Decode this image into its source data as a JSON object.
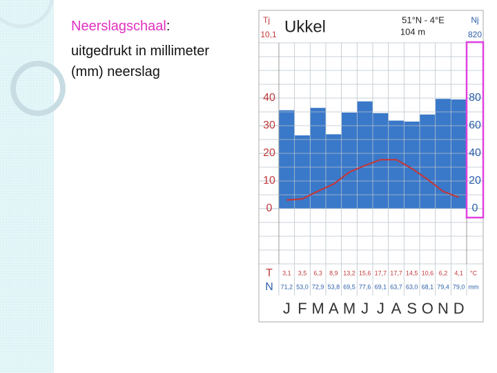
{
  "slide": {
    "term": "Neerslagschaal",
    "separator": ":",
    "lines": [
      "uitgedrukt in millimeter",
      "(mm) neerslag"
    ]
  },
  "chart_data": {
    "type": "climate",
    "title": "Ukkel",
    "coordinates": "51°N - 4°E",
    "elevation": "104 m",
    "annual_temperature_label": "Tj",
    "annual_temperature": "10,1",
    "annual_precipitation_label": "Nj",
    "annual_precipitation": "820",
    "categories": [
      "J",
      "F",
      "M",
      "A",
      "M",
      "J",
      "J",
      "A",
      "S",
      "O",
      "N",
      "D"
    ],
    "series": [
      {
        "name": "N",
        "unit": "mm",
        "color": "#3a78c9",
        "axis": "y2",
        "values": [
          71.2,
          53.0,
          72.9,
          53.8,
          69.5,
          77.6,
          69.1,
          63.7,
          63.0,
          68.1,
          79.4,
          79.0
        ],
        "value_labels": [
          "71,2",
          "53,0",
          "72,9",
          "53,8",
          "69,5",
          "77,6",
          "69,1",
          "63,7",
          "63,0",
          "68,1",
          "79,4",
          "79,0"
        ]
      },
      {
        "name": "T",
        "unit": "°C",
        "color": "#c0393b",
        "values": [
          3.1,
          3.5,
          6.3,
          8.9,
          13.2,
          15.6,
          17.7,
          17.7,
          14.5,
          10.6,
          6.2,
          4.1
        ],
        "value_labels": [
          "3,1",
          "3,5",
          "6,3",
          "8,9",
          "13,2",
          "15,6",
          "17,7",
          "17,7",
          "14,5",
          "10,6",
          "6,2",
          "4,1"
        ]
      }
    ],
    "ylim": [
      -20,
      60
    ],
    "yticks": [
      0,
      10,
      20,
      30,
      40
    ],
    "y2lim": [
      -40,
      120
    ],
    "y2ticks": [
      0,
      20,
      40,
      60,
      80
    ],
    "grid": true
  }
}
